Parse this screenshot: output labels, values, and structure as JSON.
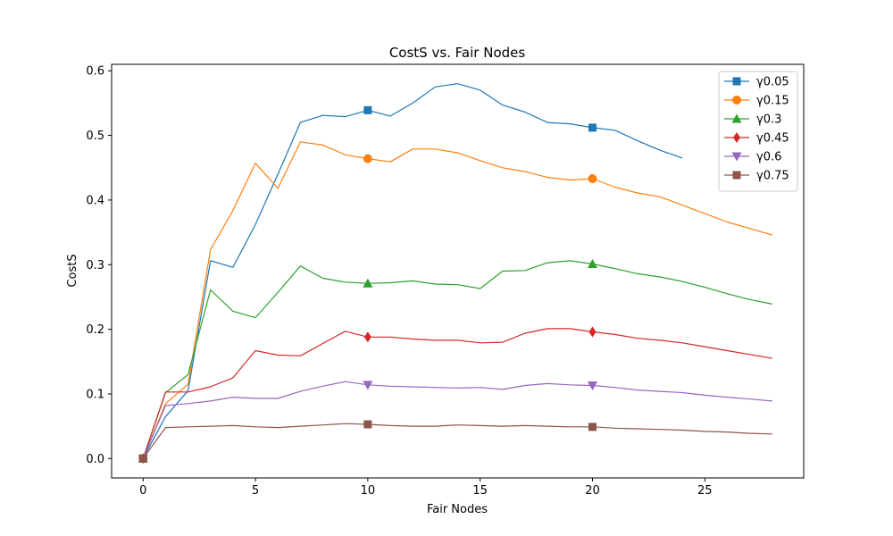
{
  "chart_data": {
    "type": "line",
    "title": "CostS vs. Fair Nodes",
    "xlabel": "Fair Nodes",
    "ylabel": "CostS",
    "xlim": [
      -1.4,
      29.4
    ],
    "ylim": [
      -0.03,
      0.61
    ],
    "xticks": [
      0,
      5,
      10,
      15,
      20,
      25
    ],
    "yticks": [
      0.0,
      0.1,
      0.2,
      0.3,
      0.4,
      0.5,
      0.6
    ],
    "ytick_labels": [
      "0.0",
      "0.1",
      "0.2",
      "0.3",
      "0.4",
      "0.5",
      "0.6"
    ],
    "grid": false,
    "legend_position": "top-right",
    "marker_x": [
      0,
      10,
      20
    ],
    "series": [
      {
        "name": "γ0.05",
        "color": "#1f77b4",
        "marker": "square",
        "x": [
          0,
          1,
          2,
          3,
          4,
          5,
          6,
          7,
          8,
          9,
          10,
          11,
          12,
          13,
          14,
          15,
          16,
          17,
          18,
          19,
          20,
          21,
          22,
          23,
          24
        ],
        "values": [
          0.0,
          0.065,
          0.105,
          0.306,
          0.296,
          0.362,
          0.44,
          0.52,
          0.531,
          0.529,
          0.539,
          0.53,
          0.55,
          0.575,
          0.58,
          0.57,
          0.547,
          0.536,
          0.52,
          0.518,
          0.512,
          0.508,
          0.492,
          0.477,
          0.465
        ]
      },
      {
        "name": "γ0.15",
        "color": "#ff7f0e",
        "marker": "circle",
        "x": [
          0,
          1,
          2,
          3,
          4,
          5,
          6,
          7,
          8,
          9,
          10,
          11,
          12,
          13,
          14,
          15,
          16,
          17,
          18,
          19,
          20,
          21,
          22,
          23,
          24,
          25,
          26,
          27,
          28
        ],
        "values": [
          0.0,
          0.085,
          0.115,
          0.323,
          0.384,
          0.457,
          0.418,
          0.49,
          0.485,
          0.47,
          0.464,
          0.459,
          0.479,
          0.479,
          0.473,
          0.461,
          0.45,
          0.444,
          0.435,
          0.431,
          0.433,
          0.42,
          0.411,
          0.405,
          0.392,
          0.379,
          0.366,
          0.356,
          0.346
        ]
      },
      {
        "name": "γ0.3",
        "color": "#2ca02c",
        "marker": "triangle-up",
        "x": [
          0,
          1,
          2,
          3,
          4,
          5,
          6,
          7,
          8,
          9,
          10,
          11,
          12,
          13,
          14,
          15,
          16,
          17,
          18,
          19,
          20,
          21,
          22,
          23,
          24,
          25,
          26,
          27,
          28
        ],
        "values": [
          0.0,
          0.102,
          0.13,
          0.261,
          0.228,
          0.218,
          0.257,
          0.298,
          0.279,
          0.273,
          0.271,
          0.272,
          0.275,
          0.27,
          0.269,
          0.263,
          0.29,
          0.291,
          0.303,
          0.306,
          0.301,
          0.294,
          0.286,
          0.281,
          0.274,
          0.265,
          0.255,
          0.246,
          0.239
        ]
      },
      {
        "name": "γ0.45",
        "color": "#d62728",
        "marker": "diamond",
        "x": [
          0,
          1,
          2,
          3,
          4,
          5,
          6,
          7,
          8,
          9,
          10,
          11,
          12,
          13,
          14,
          15,
          16,
          17,
          18,
          19,
          20,
          21,
          22,
          23,
          24,
          25,
          26,
          27,
          28
        ],
        "values": [
          0.0,
          0.103,
          0.103,
          0.111,
          0.125,
          0.167,
          0.16,
          0.159,
          0.178,
          0.197,
          0.188,
          0.188,
          0.185,
          0.183,
          0.183,
          0.179,
          0.18,
          0.194,
          0.201,
          0.201,
          0.196,
          0.192,
          0.186,
          0.183,
          0.179,
          0.173,
          0.167,
          0.161,
          0.155
        ]
      },
      {
        "name": "γ0.6",
        "color": "#9467bd",
        "marker": "triangle-down",
        "x": [
          0,
          1,
          2,
          3,
          4,
          5,
          6,
          7,
          8,
          9,
          10,
          11,
          12,
          13,
          14,
          15,
          16,
          17,
          18,
          19,
          20,
          21,
          22,
          23,
          24,
          25,
          26,
          27,
          28
        ],
        "values": [
          0.0,
          0.082,
          0.085,
          0.089,
          0.095,
          0.093,
          0.093,
          0.104,
          0.112,
          0.119,
          0.114,
          0.112,
          0.111,
          0.11,
          0.109,
          0.11,
          0.107,
          0.113,
          0.116,
          0.114,
          0.113,
          0.11,
          0.106,
          0.104,
          0.102,
          0.098,
          0.095,
          0.092,
          0.089
        ]
      },
      {
        "name": "γ0.75",
        "color": "#8c564b",
        "marker": "square",
        "x": [
          0,
          1,
          2,
          3,
          4,
          5,
          6,
          7,
          8,
          9,
          10,
          11,
          12,
          13,
          14,
          15,
          16,
          17,
          18,
          19,
          20,
          21,
          22,
          23,
          24,
          25,
          26,
          27,
          28
        ],
        "values": [
          0.0,
          0.048,
          0.049,
          0.05,
          0.051,
          0.049,
          0.048,
          0.05,
          0.052,
          0.054,
          0.053,
          0.051,
          0.05,
          0.05,
          0.052,
          0.051,
          0.05,
          0.051,
          0.05,
          0.049,
          0.049,
          0.047,
          0.046,
          0.045,
          0.044,
          0.042,
          0.041,
          0.039,
          0.038
        ]
      }
    ]
  }
}
